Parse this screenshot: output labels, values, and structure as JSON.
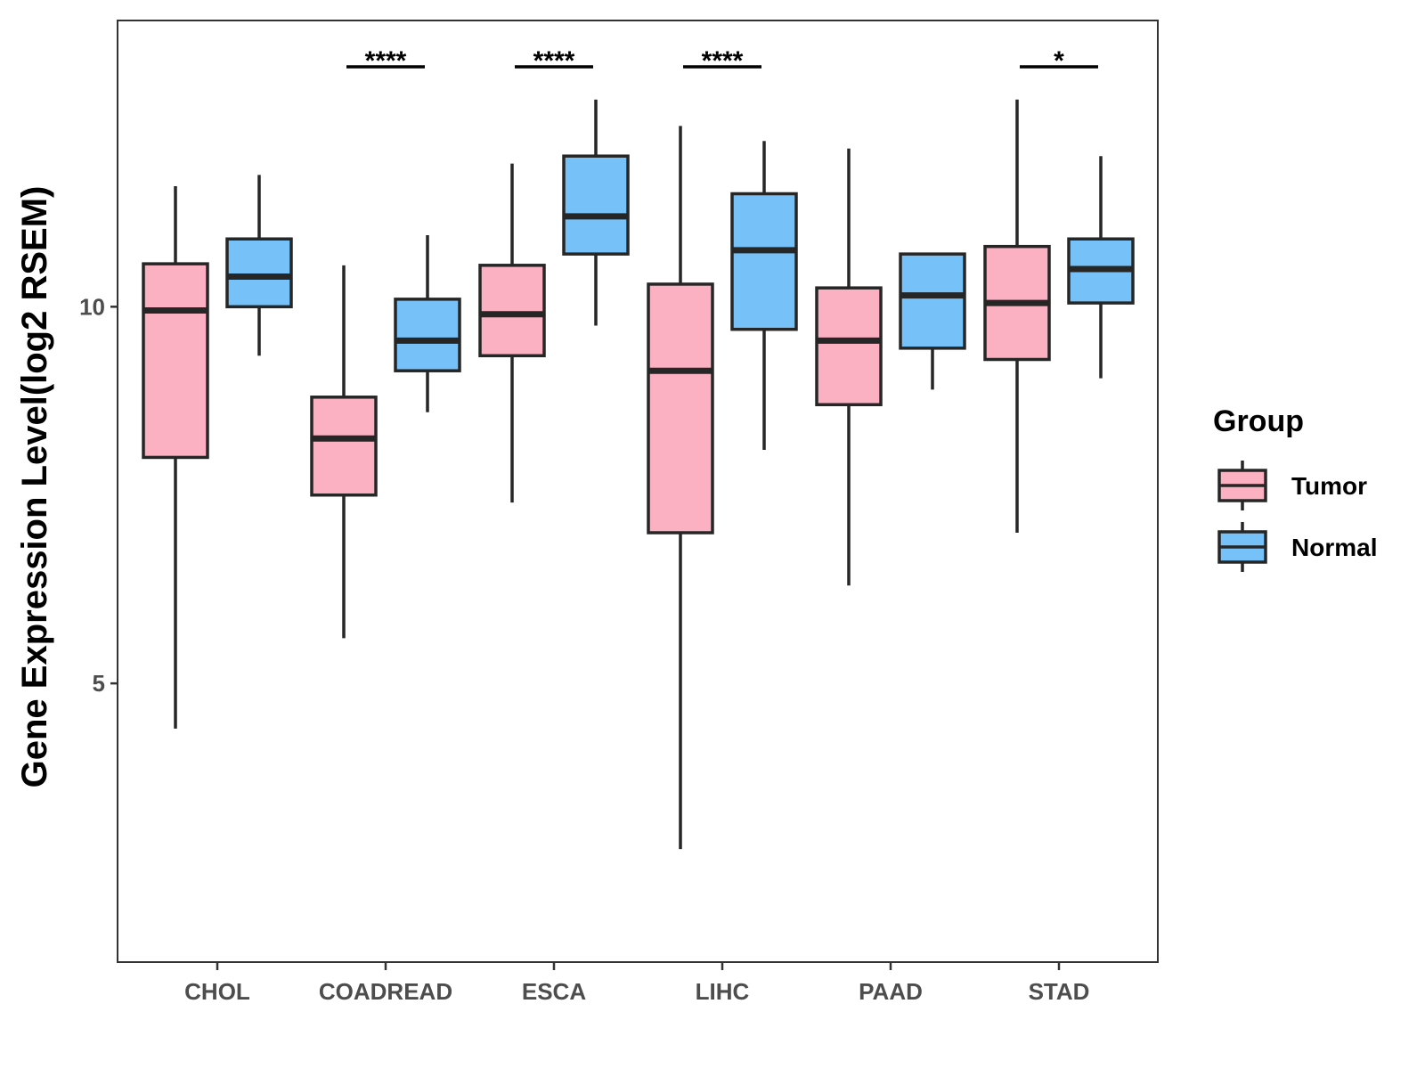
{
  "chart_data": {
    "type": "boxplot",
    "title": "",
    "xlabel": "",
    "ylabel": "Gene Expression Level(log2 RSEM)",
    "ylim": [
      1.3,
      13.8
    ],
    "yticks": [
      5,
      10
    ],
    "ytick_labels": [
      "5",
      "10"
    ],
    "grid": false,
    "legend_position": "right",
    "categories": [
      "CHOL",
      "COADREAD",
      "ESCA",
      "LIHC",
      "PAAD",
      "STAD"
    ],
    "legend": {
      "title": "Group",
      "entries": [
        "Tumor",
        "Normal"
      ]
    },
    "series": [
      {
        "name": "Tumor",
        "color": "#FBB1C2",
        "boxes": [
          {
            "category": "CHOL",
            "min": 4.4,
            "q1": 8.0,
            "median": 9.95,
            "q3": 10.57,
            "max": 11.6
          },
          {
            "category": "COADREAD",
            "min": 5.6,
            "q1": 7.5,
            "median": 8.25,
            "q3": 8.8,
            "max": 10.55
          },
          {
            "category": "ESCA",
            "min": 7.4,
            "q1": 9.35,
            "median": 9.9,
            "q3": 10.55,
            "max": 11.9
          },
          {
            "category": "LIHC",
            "min": 2.8,
            "q1": 7.0,
            "median": 9.15,
            "q3": 10.3,
            "max": 12.4
          },
          {
            "category": "PAAD",
            "min": 6.3,
            "q1": 8.7,
            "median": 9.55,
            "q3": 10.25,
            "max": 12.1
          },
          {
            "category": "STAD",
            "min": 7.0,
            "q1": 9.3,
            "median": 10.05,
            "q3": 10.8,
            "max": 12.75
          }
        ]
      },
      {
        "name": "Normal",
        "color": "#76C2F8",
        "boxes": [
          {
            "category": "CHOL",
            "min": 9.35,
            "q1": 10.0,
            "median": 10.4,
            "q3": 10.9,
            "max": 11.75
          },
          {
            "category": "COADREAD",
            "min": 8.6,
            "q1": 9.15,
            "median": 9.55,
            "q3": 10.1,
            "max": 10.95
          },
          {
            "category": "ESCA",
            "min": 9.75,
            "q1": 10.7,
            "median": 11.2,
            "q3": 12.0,
            "max": 12.75
          },
          {
            "category": "LIHC",
            "min": 8.1,
            "q1": 9.7,
            "median": 10.75,
            "q3": 11.5,
            "max": 12.2
          },
          {
            "category": "PAAD",
            "min": 8.9,
            "q1": 9.45,
            "median": 10.15,
            "q3": 10.7,
            "max": 10.7
          },
          {
            "category": "STAD",
            "min": 9.05,
            "q1": 10.05,
            "median": 10.5,
            "q3": 10.9,
            "max": 12.0
          }
        ]
      }
    ],
    "annotations": [
      {
        "category": "COADREAD",
        "label": "****"
      },
      {
        "category": "ESCA",
        "label": "****"
      },
      {
        "category": "LIHC",
        "label": "****"
      },
      {
        "category": "STAD",
        "label": "*"
      }
    ]
  }
}
